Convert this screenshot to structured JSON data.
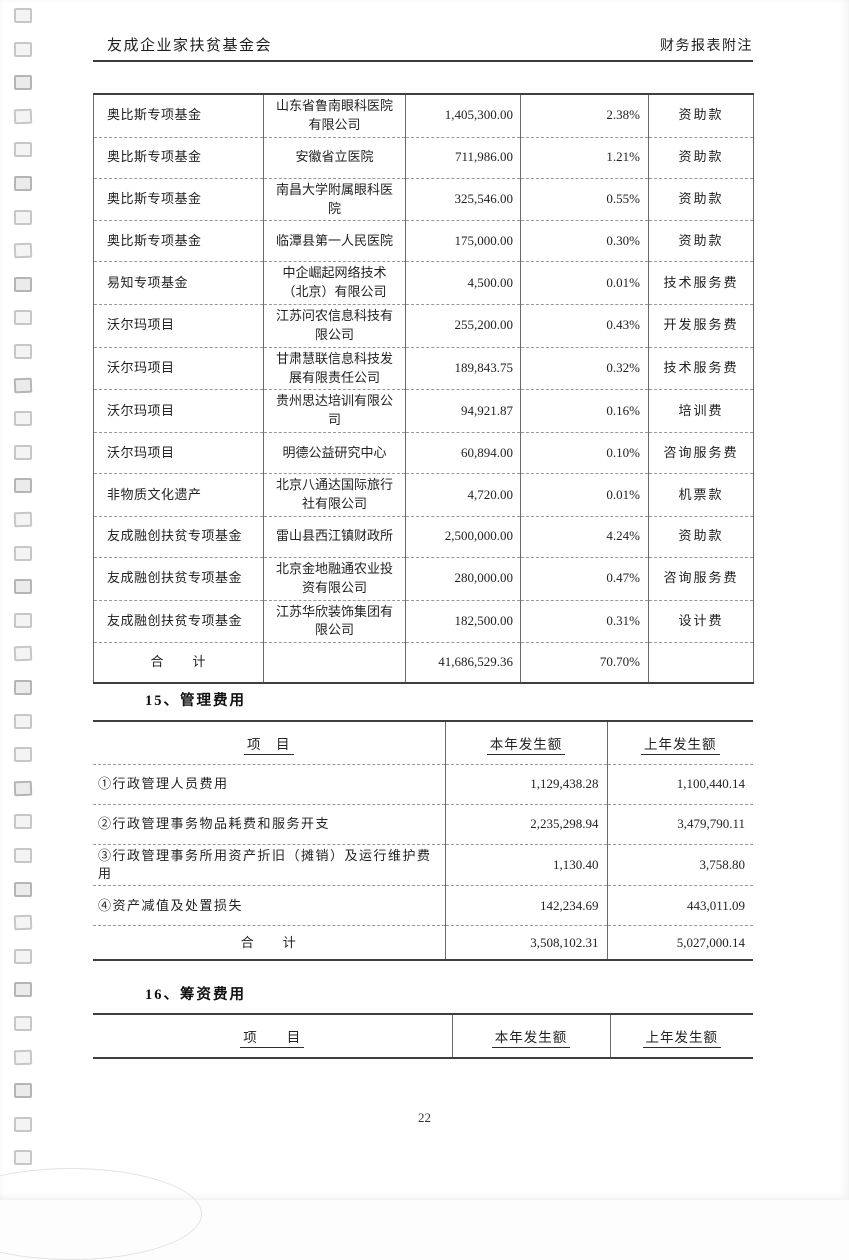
{
  "header": {
    "left": "友成企业家扶贫基金会",
    "right": "财务报表附注"
  },
  "fund_table": {
    "rows": [
      {
        "fund": "奥比斯专项基金",
        "org": "山东省鲁南眼科医院有限公司",
        "amount": "1,405,300.00",
        "pct": "2.38%",
        "nature": "资助款"
      },
      {
        "fund": "奥比斯专项基金",
        "org": "安徽省立医院",
        "amount": "711,986.00",
        "pct": "1.21%",
        "nature": "资助款"
      },
      {
        "fund": "奥比斯专项基金",
        "org": "南昌大学附属眼科医院",
        "amount": "325,546.00",
        "pct": "0.55%",
        "nature": "资助款"
      },
      {
        "fund": "奥比斯专项基金",
        "org": "临潭县第一人民医院",
        "amount": "175,000.00",
        "pct": "0.30%",
        "nature": "资助款"
      },
      {
        "fund": "易知专项基金",
        "org": "中企崛起网络技术（北京）有限公司",
        "amount": "4,500.00",
        "pct": "0.01%",
        "nature": "技术服务费"
      },
      {
        "fund": "沃尔玛项目",
        "org": "江苏问农信息科技有限公司",
        "amount": "255,200.00",
        "pct": "0.43%",
        "nature": "开发服务费"
      },
      {
        "fund": "沃尔玛项目",
        "org": "甘肃慧联信息科技发展有限责任公司",
        "amount": "189,843.75",
        "pct": "0.32%",
        "nature": "技术服务费"
      },
      {
        "fund": "沃尔玛项目",
        "org": "贵州思达培训有限公司",
        "amount": "94,921.87",
        "pct": "0.16%",
        "nature": "培训费"
      },
      {
        "fund": "沃尔玛项目",
        "org": "明德公益研究中心",
        "amount": "60,894.00",
        "pct": "0.10%",
        "nature": "咨询服务费"
      },
      {
        "fund": "非物质文化遗产",
        "org": "北京八通达国际旅行社有限公司",
        "amount": "4,720.00",
        "pct": "0.01%",
        "nature": "机票款"
      },
      {
        "fund": "友成融创扶贫专项基金",
        "org": "雷山县西江镇财政所",
        "amount": "2,500,000.00",
        "pct": "4.24%",
        "nature": "资助款"
      },
      {
        "fund": "友成融创扶贫专项基金",
        "org": "北京金地融通农业投资有限公司",
        "amount": "280,000.00",
        "pct": "0.47%",
        "nature": "咨询服务费"
      },
      {
        "fund": "友成融创扶贫专项基金",
        "org": "江苏华欣装饰集团有限公司",
        "amount": "182,500.00",
        "pct": "0.31%",
        "nature": "设计费"
      }
    ],
    "total": {
      "label": "合　　计",
      "amount": "41,686,529.36",
      "pct": "70.70%"
    }
  },
  "section15": {
    "title": "15、管理费用",
    "headers": {
      "item": "项　目",
      "current": "本年发生额",
      "prior": "上年发生额"
    },
    "rows": [
      {
        "item": "①行政管理人员费用",
        "current": "1,129,438.28",
        "prior": "1,100,440.14"
      },
      {
        "item": "②行政管理事务物品耗费和服务开支",
        "current": "2,235,298.94",
        "prior": "3,479,790.11"
      },
      {
        "item": "③行政管理事务所用资产折旧（摊销）及运行维护费用",
        "current": "1,130.40",
        "prior": "3,758.80"
      },
      {
        "item": "④资产减值及处置损失",
        "current": "142,234.69",
        "prior": "443,011.09"
      }
    ],
    "total": {
      "label": "合　　计",
      "current": "3,508,102.31",
      "prior": "5,027,000.14"
    }
  },
  "section16": {
    "title": "16、筹资费用",
    "headers": {
      "item": "项　　目",
      "current": "本年发生额",
      "prior": "上年发生额"
    }
  },
  "footer": {
    "page_number": "22"
  }
}
